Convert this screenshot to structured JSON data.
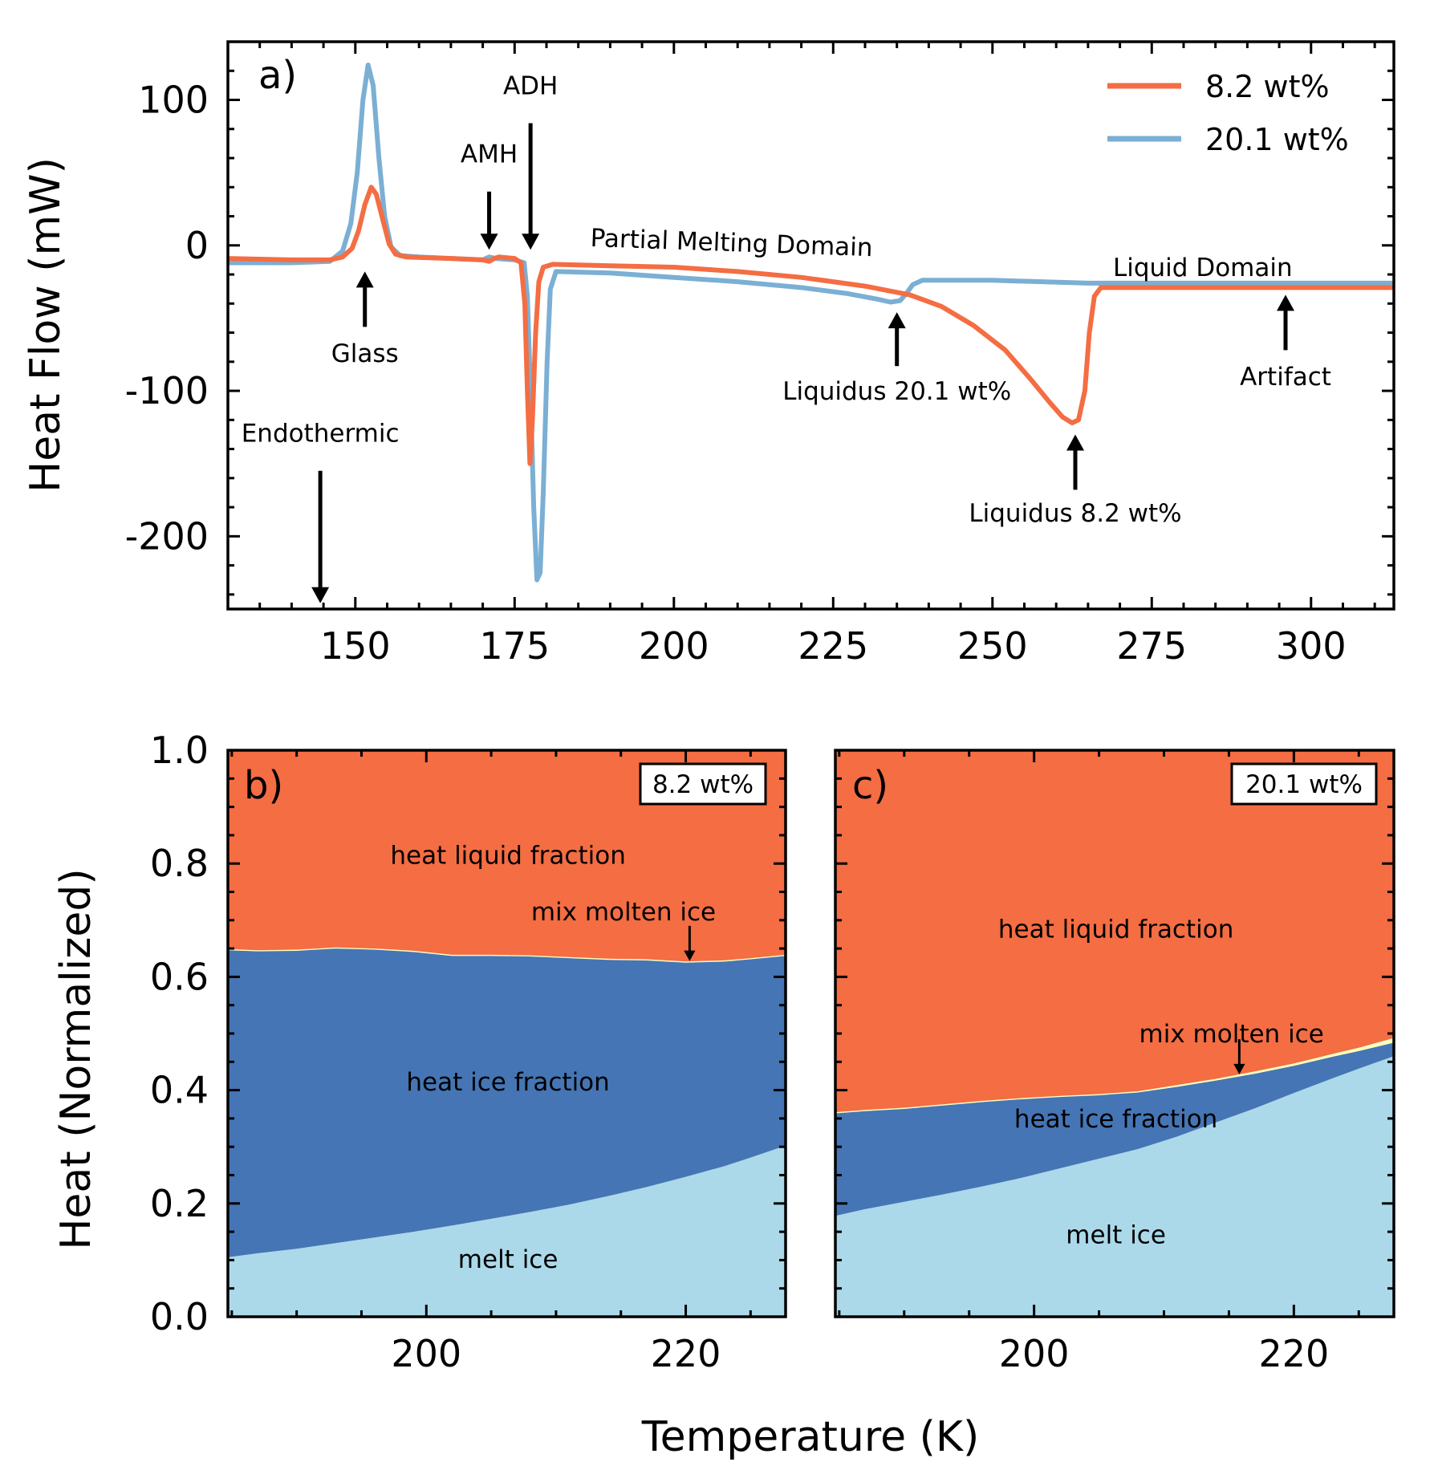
{
  "colors": {
    "orange": "#f46d43",
    "light_blue": "#7bafd4",
    "ice_dark": "#4575b4",
    "ice_light": "#abd9e9",
    "mix_line": "#ffffbf"
  },
  "figure": {
    "xlabel": "Temperature (K)",
    "ylabel_bottom": "Heat (Normalized)"
  },
  "chart_data": [
    {
      "panel": "a)",
      "type": "line",
      "ylabel": "Heat Flow (mW)",
      "xlim": [
        130,
        313
      ],
      "ylim": [
        -250,
        140
      ],
      "xticks": [
        150,
        175,
        200,
        225,
        250,
        275,
        300
      ],
      "yticks": [
        100,
        0,
        -100,
        -200
      ],
      "ytick_labels": [
        "100",
        "0",
        "-100",
        "-200"
      ],
      "legend_position": "top-right",
      "series": [
        {
          "name": "8.2 wt%",
          "color": "#f46d43",
          "points": [
            [
              130,
              -9
            ],
            [
              140,
              -10
            ],
            [
              146,
              -10
            ],
            [
              148,
              -8
            ],
            [
              149.5,
              -2
            ],
            [
              150.5,
              10
            ],
            [
              151.5,
              28
            ],
            [
              152.5,
              40
            ],
            [
              153.3,
              35
            ],
            [
              154.3,
              18
            ],
            [
              155.3,
              1
            ],
            [
              156.3,
              -6
            ],
            [
              158,
              -8
            ],
            [
              165,
              -9
            ],
            [
              170,
              -10
            ],
            [
              171,
              -11
            ],
            [
              171.8,
              -9
            ],
            [
              172.5,
              -8
            ],
            [
              175,
              -9
            ],
            [
              176,
              -12
            ],
            [
              176.6,
              -40
            ],
            [
              177,
              -100
            ],
            [
              177.4,
              -150
            ],
            [
              177.8,
              -120
            ],
            [
              178.3,
              -60
            ],
            [
              178.8,
              -25
            ],
            [
              179.5,
              -15
            ],
            [
              181,
              -13
            ],
            [
              190,
              -14
            ],
            [
              200,
              -15
            ],
            [
              210,
              -18
            ],
            [
              220,
              -22
            ],
            [
              230,
              -28
            ],
            [
              237,
              -34
            ],
            [
              242,
              -42
            ],
            [
              247,
              -55
            ],
            [
              252,
              -72
            ],
            [
              256,
              -92
            ],
            [
              259,
              -108
            ],
            [
              261,
              -118
            ],
            [
              262.5,
              -122
            ],
            [
              263.5,
              -120
            ],
            [
              264.5,
              -100
            ],
            [
              265.2,
              -60
            ],
            [
              266,
              -35
            ],
            [
              267,
              -29
            ],
            [
              270,
              -29
            ],
            [
              280,
              -29
            ],
            [
              290,
              -29
            ],
            [
              300,
              -29
            ],
            [
              313,
              -29
            ]
          ]
        },
        {
          "name": "20.1 wt%",
          "color": "#7bafd4",
          "points": [
            [
              130,
              -12
            ],
            [
              140,
              -12
            ],
            [
              146,
              -11
            ],
            [
              148,
              -4
            ],
            [
              149.3,
              15
            ],
            [
              150.3,
              50
            ],
            [
              151.2,
              100
            ],
            [
              152,
              124
            ],
            [
              152.8,
              110
            ],
            [
              153.7,
              60
            ],
            [
              154.6,
              20
            ],
            [
              155.6,
              -1
            ],
            [
              157,
              -7
            ],
            [
              160,
              -8
            ],
            [
              165,
              -9
            ],
            [
              170,
              -10
            ],
            [
              171,
              -8
            ],
            [
              172,
              -9
            ],
            [
              175,
              -10
            ],
            [
              176.5,
              -12
            ],
            [
              177,
              -35
            ],
            [
              177.5,
              -100
            ],
            [
              178,
              -180
            ],
            [
              178.5,
              -230
            ],
            [
              179,
              -225
            ],
            [
              179.5,
              -170
            ],
            [
              180.1,
              -80
            ],
            [
              180.6,
              -30
            ],
            [
              181.5,
              -18
            ],
            [
              190,
              -19
            ],
            [
              200,
              -22
            ],
            [
              210,
              -25
            ],
            [
              220,
              -29
            ],
            [
              227,
              -33
            ],
            [
              232,
              -37
            ],
            [
              234,
              -39
            ],
            [
              235.5,
              -38
            ],
            [
              236.5,
              -33
            ],
            [
              237.5,
              -27
            ],
            [
              239,
              -24
            ],
            [
              250,
              -24
            ],
            [
              265,
              -26
            ],
            [
              280,
              -26
            ],
            [
              300,
              -26
            ],
            [
              313,
              -26
            ]
          ]
        }
      ],
      "annotations": [
        {
          "text": "Glass",
          "x": 151.5,
          "arrow_from": -56,
          "arrow_to": -18,
          "text_y": -80
        },
        {
          "text": "AMH",
          "x": 171,
          "arrow_from": 37,
          "arrow_to": -3,
          "text_y": 57
        },
        {
          "text": "ADH",
          "x": 177.5,
          "arrow_from": 84,
          "arrow_to": -3,
          "text_y": 104
        },
        {
          "text": "Partial Melting Domain",
          "x": 209,
          "text_y": -4,
          "rotate": 2
        },
        {
          "text": "Liquidus 20.1 wt%",
          "x": 235,
          "arrow_from": -83,
          "arrow_to": -46,
          "text_y": -106
        },
        {
          "text": "Liquidus 8.2 wt%",
          "x": 263,
          "arrow_from": -168,
          "arrow_to": -130,
          "text_y": -190
        },
        {
          "text": "Liquid Domain",
          "x": 283,
          "text_y": -21
        },
        {
          "text": "Artifact",
          "x": 296,
          "arrow_from": -72,
          "arrow_to": -34,
          "text_y": -96
        },
        {
          "text": "Endothermic",
          "x": 144.5,
          "arrow_from": -155,
          "arrow_to": -246,
          "text_y": -135
        }
      ]
    },
    {
      "panel": "b)",
      "type": "area",
      "tag": "8.2 wt%",
      "xlim": [
        184.7,
        227.7
      ],
      "ylim": [
        0,
        1.0
      ],
      "xticks": [
        200,
        220
      ],
      "yticks": [
        0.0,
        0.2,
        0.4,
        0.6,
        0.8,
        1.0
      ],
      "ytick_labels": [
        "0.0",
        "0.2",
        "0.4",
        "0.6",
        "0.8",
        "1.0"
      ],
      "x": [
        184.7,
        187,
        190,
        193,
        196,
        199,
        202,
        205,
        208,
        211,
        214,
        217,
        220,
        223,
        225,
        227.7
      ],
      "series": [
        {
          "name": "melt ice",
          "values": [
            0.105,
            0.112,
            0.12,
            0.13,
            0.14,
            0.15,
            0.161,
            0.173,
            0.185,
            0.198,
            0.213,
            0.229,
            0.247,
            0.266,
            0.281,
            0.302
          ]
        },
        {
          "name": "heat ice fraction",
          "top": [
            0.648,
            0.646,
            0.647,
            0.651,
            0.649,
            0.645,
            0.638,
            0.638,
            0.637,
            0.634,
            0.631,
            0.63,
            0.626,
            0.628,
            0.632,
            0.638
          ]
        },
        {
          "name": "mix molten ice",
          "top": [
            0.649,
            0.647,
            0.648,
            0.652,
            0.65,
            0.646,
            0.639,
            0.639,
            0.638,
            0.635,
            0.632,
            0.631,
            0.627,
            0.629,
            0.633,
            0.639
          ]
        },
        {
          "name": "heat liquid fraction",
          "top": [
            1,
            1,
            1,
            1,
            1,
            1,
            1,
            1,
            1,
            1,
            1,
            1,
            1,
            1,
            1,
            1
          ]
        }
      ],
      "labels": [
        {
          "text": "heat liquid fraction",
          "x": 206.3,
          "y": 0.815
        },
        {
          "text": "heat ice fraction",
          "x": 206.3,
          "y": 0.415
        },
        {
          "text": "melt ice",
          "x": 206.3,
          "y": 0.102
        },
        {
          "text": "mix molten ice",
          "x": 215.2,
          "y": 0.715,
          "arrow_x": 220.3,
          "arrow_from": 0.69,
          "arrow_to": 0.628
        }
      ]
    },
    {
      "panel": "c)",
      "type": "area",
      "tag": "20.1 wt%",
      "xlim": [
        184.7,
        227.7
      ],
      "ylim": [
        0,
        1.0
      ],
      "xticks": [
        200,
        220
      ],
      "yticks": [
        0.0,
        0.2,
        0.4,
        0.6,
        0.8,
        1.0
      ],
      "x": [
        184.7,
        187,
        190,
        193,
        196,
        199,
        202,
        205,
        208,
        211,
        214,
        217,
        220,
        223,
        225,
        227.7
      ],
      "series": [
        {
          "name": "melt ice",
          "values": [
            0.178,
            0.19,
            0.203,
            0.216,
            0.23,
            0.245,
            0.262,
            0.279,
            0.296,
            0.318,
            0.343,
            0.368,
            0.395,
            0.421,
            0.438,
            0.46
          ]
        },
        {
          "name": "heat ice fraction",
          "top": [
            0.36,
            0.364,
            0.368,
            0.374,
            0.38,
            0.385,
            0.389,
            0.392,
            0.397,
            0.407,
            0.418,
            0.43,
            0.444,
            0.46,
            0.47,
            0.485
          ]
        },
        {
          "name": "mix molten ice",
          "top": [
            0.361,
            0.365,
            0.369,
            0.375,
            0.381,
            0.386,
            0.39,
            0.393,
            0.398,
            0.409,
            0.42,
            0.433,
            0.447,
            0.464,
            0.475,
            0.492
          ]
        },
        {
          "name": "heat liquid fraction",
          "top": [
            1,
            1,
            1,
            1,
            1,
            1,
            1,
            1,
            1,
            1,
            1,
            1,
            1,
            1,
            1,
            1
          ]
        }
      ],
      "labels": [
        {
          "text": "heat liquid fraction",
          "x": 206.3,
          "y": 0.685
        },
        {
          "text": "heat ice fraction",
          "x": 206.3,
          "y": 0.35
        },
        {
          "text": "melt ice",
          "x": 206.3,
          "y": 0.145
        },
        {
          "text": "mix molten ice",
          "x": 215.2,
          "y": 0.5,
          "arrow_x": 215.8,
          "arrow_from": 0.49,
          "arrow_to": 0.428
        }
      ]
    }
  ]
}
